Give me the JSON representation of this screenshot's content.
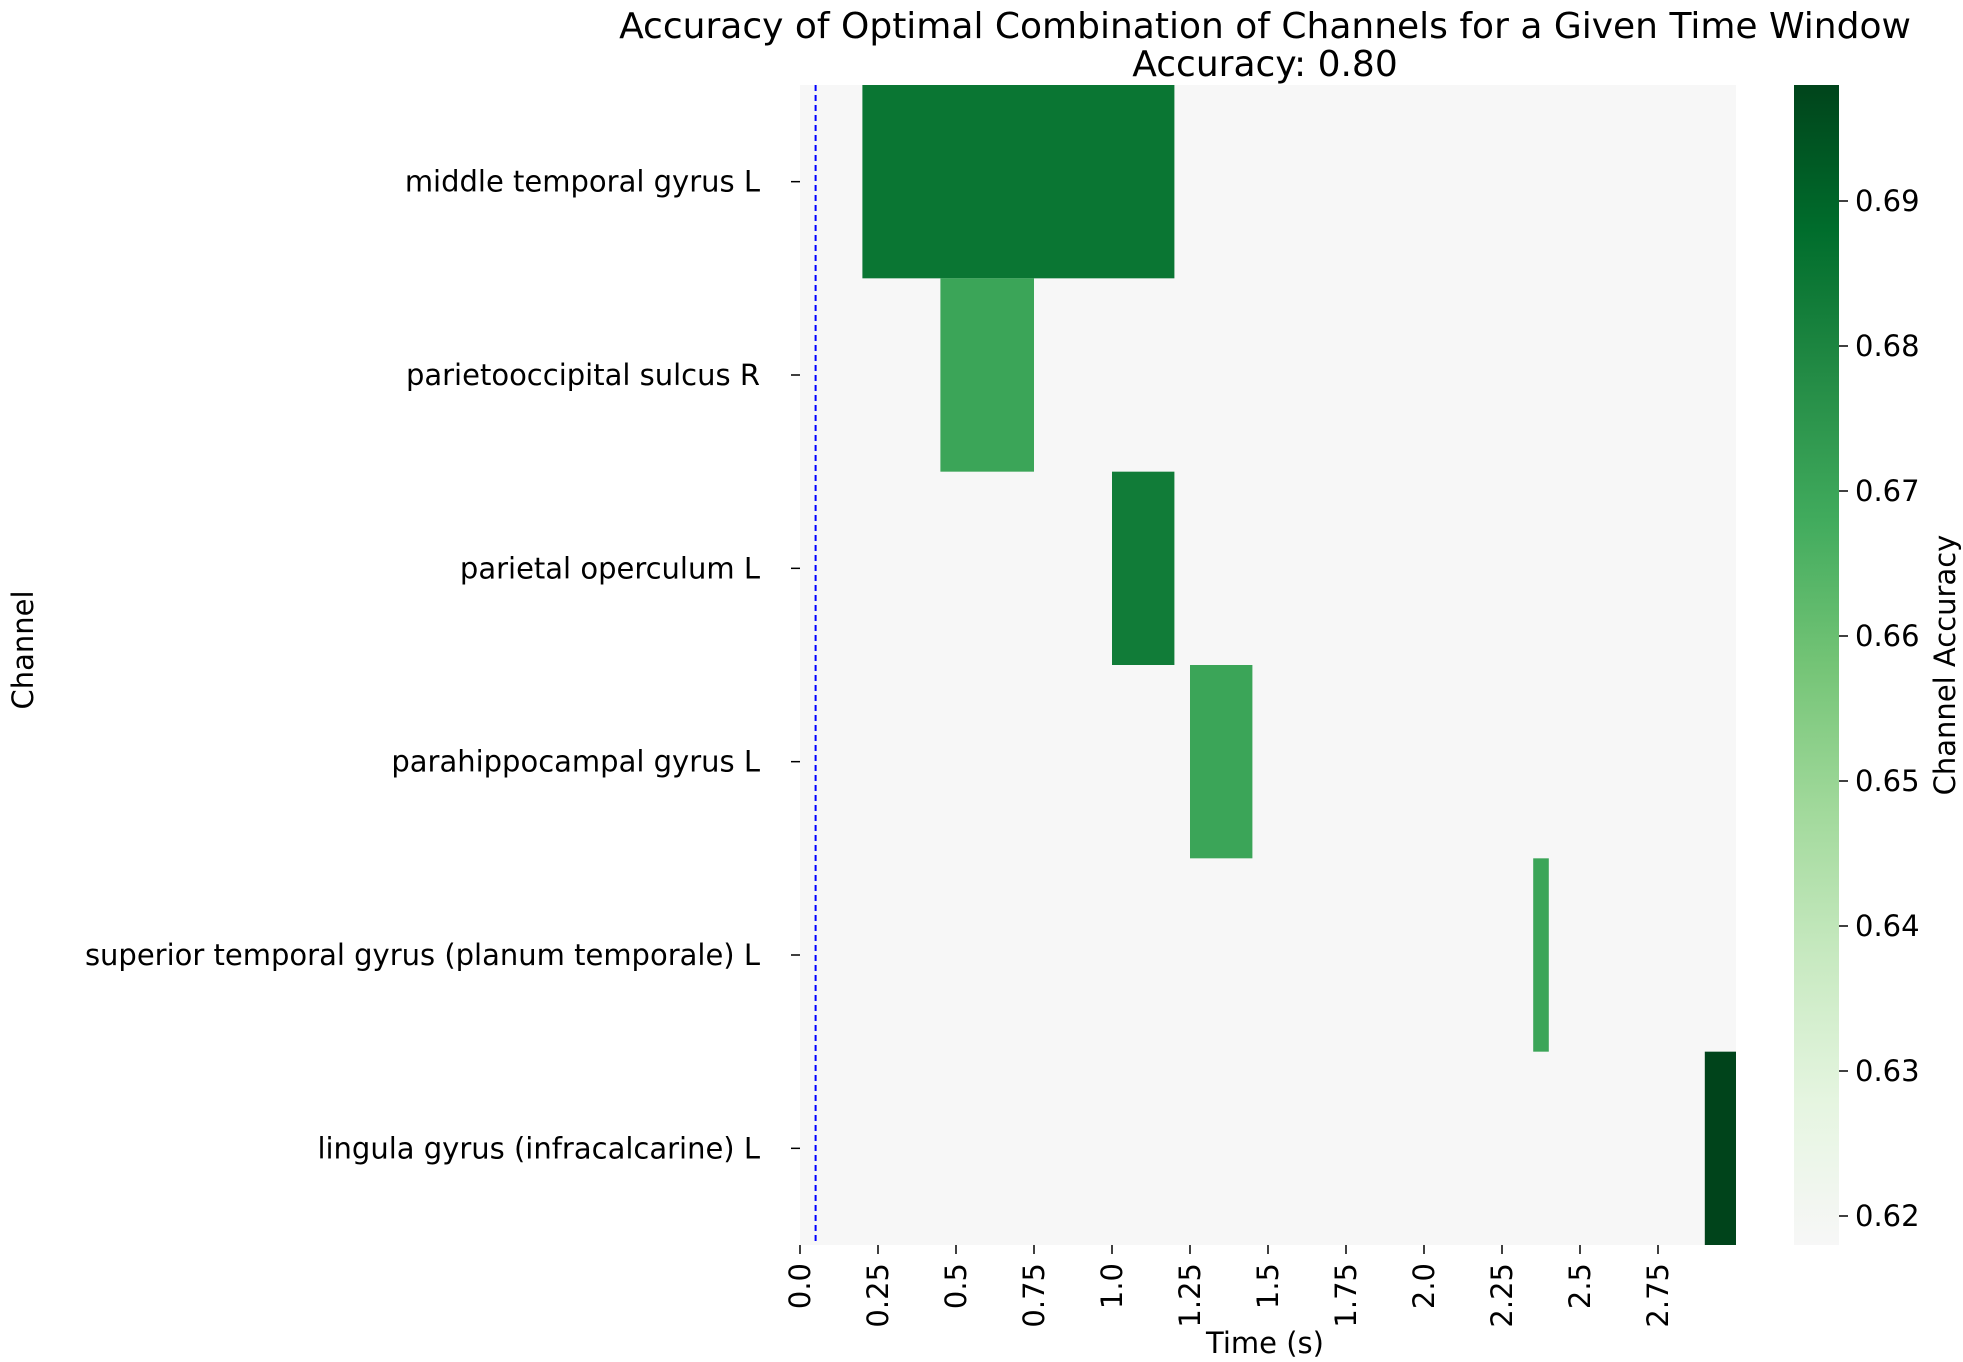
{
  "chart_data": {
    "type": "heatmap",
    "title": "Accuracy of Optimal Combination of Channels for a Given Time Window",
    "subtitle": "Accuracy: 0.80",
    "xlabel": "Time (s)",
    "ylabel": "Channel",
    "xlim": [
      0,
      3.0
    ],
    "x_ticks": [
      "0.0",
      "0.25",
      "0.5",
      "0.75",
      "1.0",
      "1.25",
      "1.5",
      "1.75",
      "2.0",
      "2.25",
      "2.5",
      "2.75"
    ],
    "channels": [
      "middle temporal gyrus L",
      "parietooccipital sulcus R",
      "parietal operculum L",
      "parahippocampal gyrus L",
      "superior temporal gyrus (planum temporale) L",
      "lingula gyrus (infracalcarine) L"
    ],
    "cells": [
      {
        "channel": 0,
        "x_start": 0.2,
        "x_end": 1.2,
        "value": 0.685
      },
      {
        "channel": 1,
        "x_start": 0.45,
        "x_end": 0.75,
        "value": 0.67
      },
      {
        "channel": 2,
        "x_start": 1.0,
        "x_end": 1.2,
        "value": 0.683
      },
      {
        "channel": 3,
        "x_start": 1.25,
        "x_end": 1.45,
        "value": 0.67
      },
      {
        "channel": 4,
        "x_start": 2.35,
        "x_end": 2.4,
        "value": 0.67
      },
      {
        "channel": 5,
        "x_start": 2.9,
        "x_end": 3.0,
        "value": 0.698
      }
    ],
    "background_value": 0.618,
    "marker_line": {
      "x": 0.05,
      "color": "#0000ff",
      "style": "dashed"
    },
    "colorbar": {
      "label": "Channel Accuracy",
      "vmin": 0.618,
      "vmax": 0.698,
      "ticks": [
        "0.62",
        "0.63",
        "0.64",
        "0.65",
        "0.66",
        "0.67",
        "0.68",
        "0.69"
      ],
      "colormap": "Greens",
      "stops": [
        "#f7f7f7",
        "#e5f5e0",
        "#c7e9c0",
        "#a1d99b",
        "#74c476",
        "#41ab5d",
        "#238b45",
        "#006d2c",
        "#00441b"
      ]
    }
  }
}
